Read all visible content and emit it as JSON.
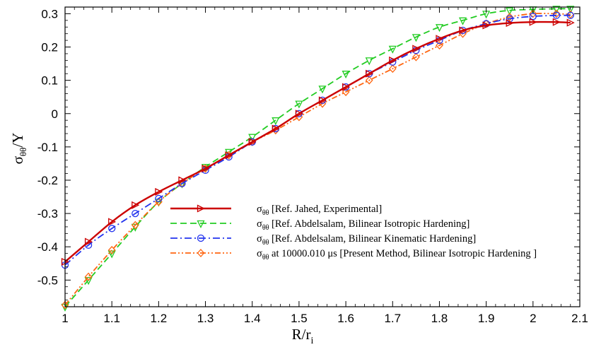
{
  "chart_data": {
    "type": "line",
    "title": "",
    "xlabel": {
      "main": "R/r",
      "sub": "i"
    },
    "ylabel": {
      "main": "σ",
      "sub": "θθ",
      "tail": "/Y"
    },
    "xlim": [
      1,
      2.1
    ],
    "ylim": [
      -0.58,
      0.32
    ],
    "xticks": [
      "1",
      "1.1",
      "1.2",
      "1.3",
      "1.4",
      "1.5",
      "1.6",
      "1.7",
      "1.8",
      "1.9",
      "2",
      "2.1"
    ],
    "yticks": [
      "-0.5",
      "-0.4",
      "-0.3",
      "-0.2",
      "-0.1",
      "0",
      "0.1",
      "0.2",
      "0.3"
    ],
    "grid": false,
    "legend_position": "lower-center",
    "series": [
      {
        "key": "jahed",
        "name": "σθθ [Ref. Jahed, Experimental]",
        "legend_prefix": "σ",
        "legend_sub": "θθ",
        "legend_rest": " [Ref. Jahed, Experimental]",
        "color": "#cc0000",
        "dash": "solid",
        "marker": "triangle-right",
        "x": [
          1.0,
          1.05,
          1.1,
          1.15,
          1.2,
          1.25,
          1.3,
          1.35,
          1.4,
          1.45,
          1.5,
          1.55,
          1.6,
          1.65,
          1.7,
          1.75,
          1.8,
          1.85,
          1.9,
          1.95,
          2.0,
          2.05,
          2.08
        ],
        "y": [
          -0.445,
          -0.385,
          -0.325,
          -0.275,
          -0.235,
          -0.2,
          -0.165,
          -0.125,
          -0.085,
          -0.045,
          0.0,
          0.04,
          0.08,
          0.12,
          0.16,
          0.195,
          0.225,
          0.25,
          0.265,
          0.272,
          0.275,
          0.275,
          0.273
        ]
      },
      {
        "key": "abd_iso",
        "name": "σθθ [Ref. Abdelsalam, Bilinear Isotropic Hardening]",
        "legend_prefix": "σ",
        "legend_sub": "θθ",
        "legend_rest": " [Ref. Abdelsalam, Bilinear Isotropic Hardening]",
        "color": "#22cc22",
        "dash": "dash",
        "marker": "triangle-down",
        "x": [
          1.0,
          1.05,
          1.1,
          1.15,
          1.2,
          1.25,
          1.3,
          1.35,
          1.4,
          1.45,
          1.5,
          1.55,
          1.6,
          1.65,
          1.7,
          1.75,
          1.8,
          1.85,
          1.9,
          1.95,
          2.0,
          2.05,
          2.08
        ],
        "y": [
          -0.58,
          -0.5,
          -0.42,
          -0.34,
          -0.265,
          -0.21,
          -0.16,
          -0.115,
          -0.07,
          -0.02,
          0.03,
          0.075,
          0.12,
          0.16,
          0.195,
          0.23,
          0.26,
          0.28,
          0.3,
          0.31,
          0.313,
          0.315,
          0.315
        ]
      },
      {
        "key": "abd_kin",
        "name": "σθθ [Ref. Abdelsalam, Bilinear Kinematic Hardening]",
        "legend_prefix": "σ",
        "legend_sub": "θθ",
        "legend_rest": " [Ref. Abdelsalam, Bilinear Kinematic Hardening]",
        "color": "#2233ee",
        "dash": "dashdot",
        "marker": "circle",
        "x": [
          1.0,
          1.05,
          1.1,
          1.15,
          1.2,
          1.25,
          1.3,
          1.35,
          1.4,
          1.45,
          1.5,
          1.55,
          1.6,
          1.65,
          1.7,
          1.75,
          1.8,
          1.85,
          1.9,
          1.95,
          2.0,
          2.05,
          2.08
        ],
        "y": [
          -0.455,
          -0.395,
          -0.345,
          -0.3,
          -0.255,
          -0.21,
          -0.17,
          -0.13,
          -0.085,
          -0.045,
          0.0,
          0.04,
          0.08,
          0.12,
          0.155,
          0.19,
          0.22,
          0.25,
          0.27,
          0.285,
          0.292,
          0.295,
          0.295
        ]
      },
      {
        "key": "present",
        "name": "σθθ at 10000.010 μs [Present Method, Bilinear Isotropic Hardening ]",
        "legend_prefix": "σ",
        "legend_sub": "θθ",
        "legend_rest": " at 10000.010 μs [Present Method, Bilinear Isotropic Hardening ]",
        "color": "#ff6611",
        "dash": "dashdotdot",
        "marker": "diamond",
        "x": [
          1.0,
          1.05,
          1.1,
          1.15,
          1.2,
          1.25,
          1.3,
          1.35,
          1.4,
          1.45,
          1.5,
          1.55,
          1.6,
          1.65,
          1.7,
          1.75,
          1.8,
          1.85,
          1.9,
          1.95,
          2.0,
          2.05,
          2.08
        ],
        "y": [
          -0.575,
          -0.49,
          -0.41,
          -0.335,
          -0.265,
          -0.21,
          -0.165,
          -0.125,
          -0.085,
          -0.05,
          -0.01,
          0.03,
          0.065,
          0.1,
          0.135,
          0.17,
          0.205,
          0.24,
          0.27,
          0.29,
          0.3,
          0.3,
          0.298
        ]
      }
    ]
  }
}
